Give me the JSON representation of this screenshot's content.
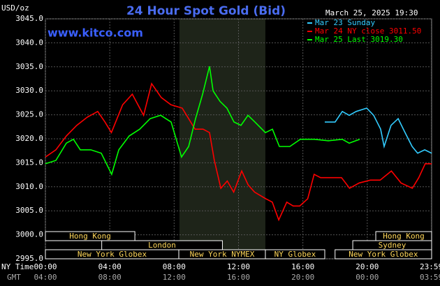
{
  "chart_data": {
    "type": "line",
    "title": "24 Hour Spot Gold (Bid)",
    "y_label": "USD/oz",
    "timestamp": "March 25, 2025 19:30",
    "site": "www.kitco.com",
    "x_row_labels": [
      "NY Time",
      "GMT"
    ],
    "xlim": [
      0,
      24
    ],
    "xticks": [
      {
        "value": 0,
        "label": "00:00"
      },
      {
        "value": 4,
        "label": "04:00"
      },
      {
        "value": 8,
        "label": "08:00"
      },
      {
        "value": 12,
        "label": "12:00"
      },
      {
        "value": 16,
        "label": "16:00"
      },
      {
        "value": 20,
        "label": "20:00"
      },
      {
        "value": 23.98,
        "label": "23:59"
      }
    ],
    "gmt_tick_labels": [
      "04:00",
      "08:00",
      "12:00",
      "16:00",
      "20:00",
      "00:00",
      "03:59"
    ],
    "ylim": [
      2995,
      3045
    ],
    "yticks": [
      {
        "value": 2995,
        "label": "2995.0"
      },
      {
        "value": 3000,
        "label": "3000.0"
      },
      {
        "value": 3005,
        "label": "3005.0"
      },
      {
        "value": 3010,
        "label": "3010.0"
      },
      {
        "value": 3015,
        "label": "3015.0"
      },
      {
        "value": 3020,
        "label": "3020.0"
      },
      {
        "value": 3025,
        "label": "3025.0"
      },
      {
        "value": 3030,
        "label": "3030.0"
      },
      {
        "value": 3035,
        "label": "3035.0"
      },
      {
        "value": 3040,
        "label": "3040.0"
      },
      {
        "value": 3045,
        "label": "3045.0"
      }
    ],
    "grid": true,
    "highlight": [
      8.33,
      13.67
    ],
    "sessions": [
      {
        "name": "Hong Kong",
        "start": 0,
        "end": 5.56
      },
      {
        "name": "London",
        "start": 3.5,
        "end": 11.0
      },
      {
        "name": "New York Globex",
        "start": 0,
        "end": 8.29
      },
      {
        "name": "New York NYMEX",
        "start": 8.29,
        "end": 13.67
      },
      {
        "name": "NY Globex",
        "start": 13.67,
        "end": 17.36
      },
      {
        "name": "Hong Kong",
        "start": 20.53,
        "end": 24
      },
      {
        "name": "Sydney",
        "start": 19.1,
        "end": 24
      },
      {
        "name": "New York Globex",
        "start": 18.0,
        "end": 24
      }
    ],
    "series": [
      {
        "name": "Mar 23 Sunday",
        "color": "#33ccff",
        "x": [
          17.36,
          18.0,
          18.45,
          18.88,
          19.31,
          19.97,
          20.4,
          20.83,
          21.05,
          21.48,
          21.92,
          22.35,
          22.79,
          23.13,
          23.57,
          24
        ],
        "values": [
          3023.5,
          3023.5,
          3025.7,
          3024.9,
          3025.7,
          3026.4,
          3024.9,
          3022.0,
          3018.4,
          3022.8,
          3024.2,
          3021.3,
          3018.4,
          3017.0,
          3017.7,
          3017.0
        ]
      },
      {
        "name": "Mar 24 NY close 3011.50",
        "color": "#ff0000",
        "x": [
          0,
          0.65,
          1.3,
          1.95,
          2.6,
          3.25,
          3.7,
          4.1,
          4.8,
          5.4,
          6.1,
          6.6,
          7.2,
          7.8,
          8.5,
          8.9,
          9.3,
          9.8,
          10.2,
          10.5,
          10.9,
          11.3,
          11.7,
          12.2,
          12.6,
          13.0,
          13.7,
          14.1,
          14.5,
          15.0,
          15.4,
          15.8,
          16.3,
          16.7,
          17.1,
          17.8,
          18.4,
          18.9,
          19.5,
          20.2,
          20.8,
          21.5,
          22.1,
          22.8,
          23.2,
          23.6,
          24
        ],
        "values": [
          3016.2,
          3017.7,
          3020.6,
          3022.8,
          3024.5,
          3025.7,
          3023.5,
          3021.3,
          3027.1,
          3029.3,
          3024.9,
          3031.5,
          3028.6,
          3027.1,
          3026.4,
          3024.2,
          3022.0,
          3022.0,
          3021.3,
          3015.5,
          3009.7,
          3011.2,
          3008.9,
          3013.3,
          3010.4,
          3008.9,
          3007.5,
          3006.8,
          3003.1,
          3006.8,
          3006.0,
          3006.0,
          3007.5,
          3012.6,
          3011.9,
          3011.9,
          3011.9,
          3009.7,
          3010.8,
          3011.4,
          3011.4,
          3013.3,
          3010.8,
          3009.7,
          3011.9,
          3014.8,
          3014.8
        ]
      },
      {
        "name": "Mar 25 Last 3019.30",
        "color": "#00ff00",
        "x": [
          0,
          0.65,
          1.3,
          1.74,
          2.17,
          2.82,
          3.47,
          4.12,
          4.56,
          5.21,
          5.86,
          6.51,
          7.16,
          7.81,
          8.46,
          8.9,
          9.33,
          9.77,
          10.2,
          10.42,
          10.85,
          11.28,
          11.72,
          12.15,
          12.59,
          13.02,
          13.67,
          14.11,
          14.54,
          15.19,
          15.84,
          16.71,
          17.58,
          18.45,
          18.88,
          19.53
        ],
        "values": [
          3014.8,
          3015.5,
          3019.1,
          3019.9,
          3017.7,
          3017.7,
          3017.0,
          3012.6,
          3017.7,
          3020.6,
          3022.0,
          3024.2,
          3024.9,
          3023.5,
          3016.2,
          3018.4,
          3024.2,
          3029.3,
          3035.1,
          3030.0,
          3027.8,
          3026.4,
          3023.5,
          3022.8,
          3024.9,
          3023.5,
          3021.3,
          3022.0,
          3018.4,
          3018.4,
          3019.9,
          3019.9,
          3019.6,
          3019.9,
          3019.1,
          3019.9
        ]
      }
    ]
  }
}
